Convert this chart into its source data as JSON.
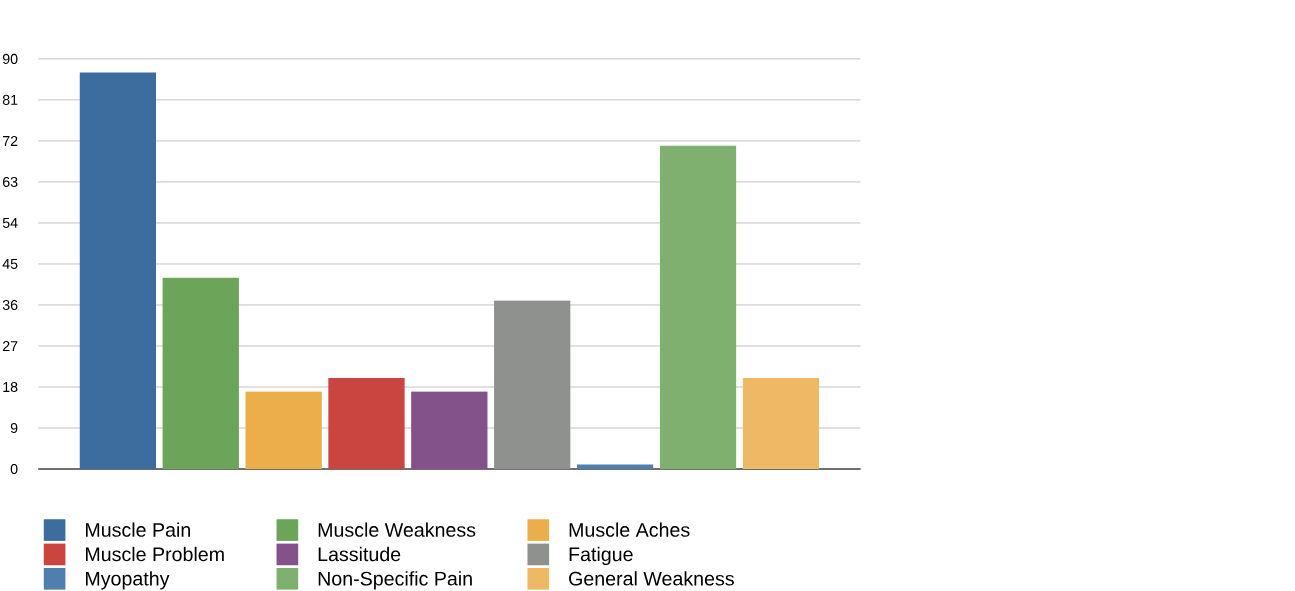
{
  "chart_data": {
    "type": "bar",
    "categories": [
      null
    ],
    "series": [
      {
        "name": "Muscle Pain",
        "color": "#3d6d9e",
        "values": [
          87
        ]
      },
      {
        "name": "Muscle Weakness",
        "color": "#6ca459",
        "values": [
          42
        ]
      },
      {
        "name": "Muscle Aches",
        "color": "#ebae4a",
        "values": [
          17
        ]
      },
      {
        "name": "Muscle Problem",
        "color": "#cb4540",
        "values": [
          20
        ]
      },
      {
        "name": "Lassitude",
        "color": "#84528b",
        "values": [
          17
        ]
      },
      {
        "name": "Fatigue",
        "color": "#8f918f",
        "values": [
          37
        ]
      },
      {
        "name": "Myopathy",
        "color": "#4f7fae",
        "values": [
          1
        ]
      },
      {
        "name": "Non-Specific Pain",
        "color": "#80b06f",
        "values": [
          71
        ]
      },
      {
        "name": "General Weakness",
        "color": "#efb865",
        "values": [
          20
        ]
      }
    ],
    "ylim": [
      0,
      90
    ],
    "yticks": [
      0,
      9,
      18,
      27,
      36,
      45,
      54,
      63,
      72,
      81,
      90
    ],
    "grid": "y",
    "legend": "bottom"
  }
}
